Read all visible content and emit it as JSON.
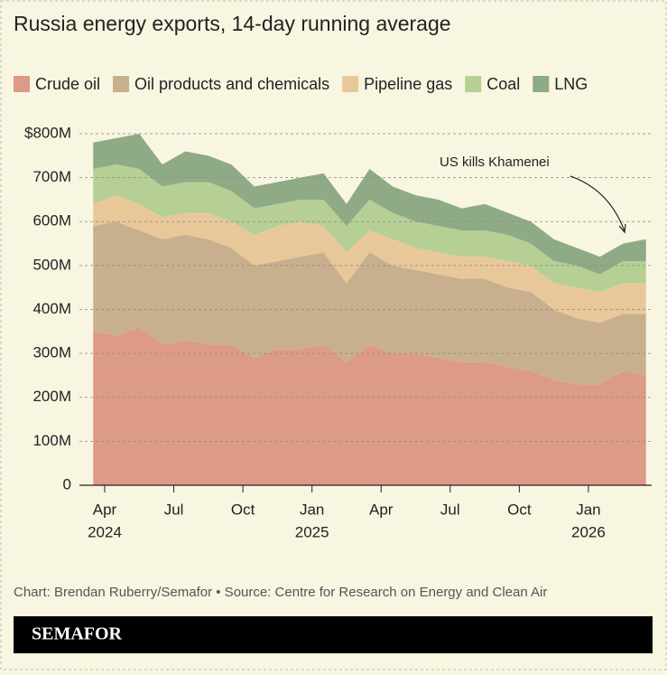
{
  "chart_data": {
    "type": "stacked-area",
    "title": "Russia energy exports, 14-day running average",
    "x": [
      "2024-03",
      "2024-04",
      "2024-05",
      "2024-06",
      "2024-07",
      "2024-08",
      "2024-09",
      "2024-10",
      "2024-11",
      "2024-12",
      "2025-01",
      "2025-02",
      "2025-03",
      "2025-04",
      "2025-05",
      "2025-06",
      "2025-07",
      "2025-08",
      "2025-09",
      "2025-10",
      "2025-11",
      "2025-12",
      "2026-01",
      "2026-02",
      "2026-03"
    ],
    "series": [
      {
        "name": "Crude oil",
        "color": "#dd9a87",
        "values": [
          350,
          340,
          360,
          320,
          330,
          320,
          320,
          290,
          310,
          310,
          320,
          280,
          320,
          300,
          300,
          290,
          280,
          280,
          270,
          260,
          240,
          230,
          230,
          260,
          250
        ]
      },
      {
        "name": "Oil products and chemicals",
        "color": "#c8b08f",
        "values": [
          240,
          260,
          220,
          240,
          240,
          240,
          220,
          210,
          200,
          210,
          210,
          180,
          210,
          200,
          190,
          190,
          190,
          190,
          180,
          180,
          160,
          150,
          140,
          130,
          140
        ]
      },
      {
        "name": "Pipeline gas",
        "color": "#e8c899",
        "values": [
          50,
          60,
          60,
          50,
          50,
          60,
          60,
          70,
          80,
          80,
          60,
          70,
          50,
          60,
          50,
          50,
          50,
          50,
          60,
          60,
          60,
          70,
          70,
          70,
          70
        ]
      },
      {
        "name": "Coal",
        "color": "#b6cf95",
        "values": [
          80,
          70,
          80,
          70,
          70,
          70,
          70,
          60,
          50,
          50,
          60,
          60,
          70,
          60,
          60,
          60,
          60,
          60,
          60,
          50,
          50,
          50,
          40,
          50,
          50
        ]
      },
      {
        "name": "LNG",
        "color": "#8fab86",
        "values": [
          60,
          60,
          80,
          50,
          70,
          60,
          60,
          50,
          50,
          50,
          60,
          50,
          70,
          60,
          60,
          60,
          50,
          60,
          50,
          50,
          50,
          40,
          40,
          40,
          50
        ]
      }
    ],
    "ylim": [
      0,
      800
    ],
    "yticks": [
      0,
      {
        "value": 100,
        "label": "100M"
      },
      {
        "value": 200,
        "label": "200M"
      },
      {
        "value": 300,
        "label": "300M"
      },
      {
        "value": 400,
        "label": "400M"
      },
      {
        "value": 500,
        "label": "500M"
      },
      {
        "value": 600,
        "label": "600M"
      },
      {
        "value": 700,
        "label": "700M"
      },
      {
        "value": 800,
        "label": "$800M"
      }
    ],
    "xticks": [
      {
        "value": "2024-04",
        "label": [
          "Apr",
          "2024"
        ]
      },
      {
        "value": "2024-07",
        "label": [
          "Jul"
        ]
      },
      {
        "value": "2024-10",
        "label": [
          "Oct"
        ]
      },
      {
        "value": "2025-01",
        "label": [
          "Jan",
          "2025"
        ]
      },
      {
        "value": "2025-04",
        "label": [
          "Apr"
        ]
      },
      {
        "value": "2025-07",
        "label": [
          "Jul"
        ]
      },
      {
        "value": "2025-10",
        "label": [
          "Oct"
        ]
      },
      {
        "value": "2026-01",
        "label": [
          "Jan",
          "2026"
        ]
      }
    ],
    "grid": true,
    "annotation": "US kills Khamenei",
    "source": "Chart: Brendan Ruberry/Semafor • Source: Centre for Research on Energy and Clean Air",
    "brand": "SEMAFOR"
  }
}
